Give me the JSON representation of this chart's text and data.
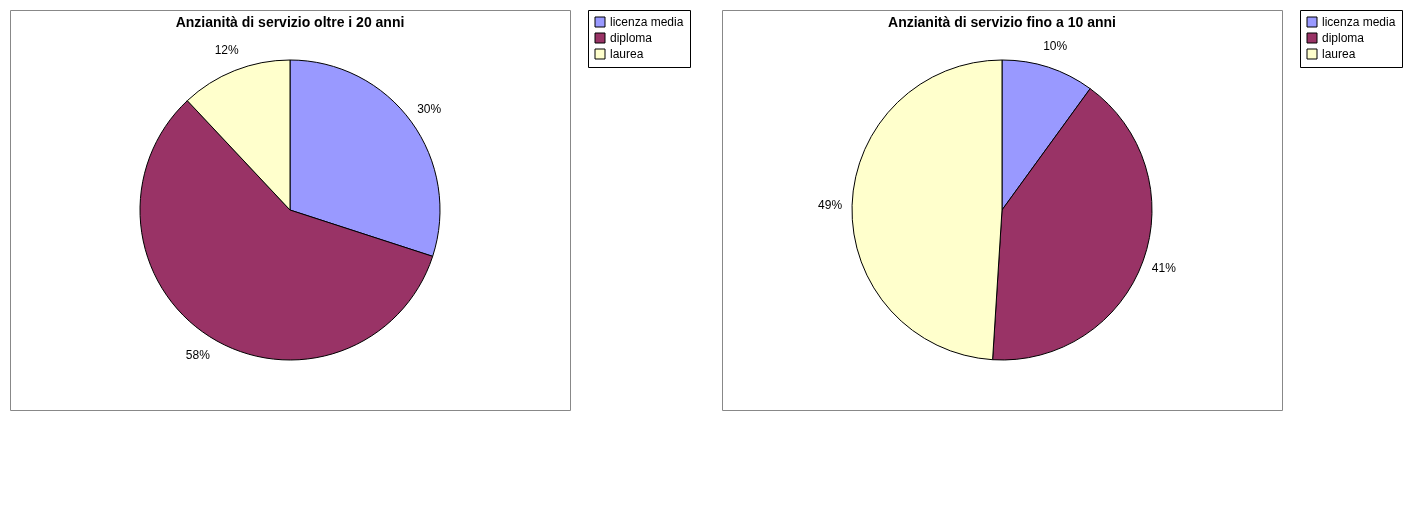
{
  "chart_data": [
    {
      "type": "pie",
      "title": "Anzianità di servizio oltre i 20 anni",
      "categories": [
        "licenza media",
        "diploma",
        "laurea"
      ],
      "values": [
        30,
        58,
        12
      ],
      "colors": [
        "#9999ff",
        "#993366",
        "#ffffcc"
      ],
      "value_labels": [
        "30%",
        "58%",
        "12%"
      ],
      "legend": "right"
    },
    {
      "type": "pie",
      "title": "Anzianità di servizio fino a 10 anni",
      "categories": [
        "licenza media",
        "diploma",
        "laurea"
      ],
      "values": [
        10,
        41,
        49
      ],
      "colors": [
        "#9999ff",
        "#993366",
        "#ffffcc"
      ],
      "value_labels": [
        "10%",
        "41%",
        "49%"
      ],
      "legend": "right"
    }
  ]
}
